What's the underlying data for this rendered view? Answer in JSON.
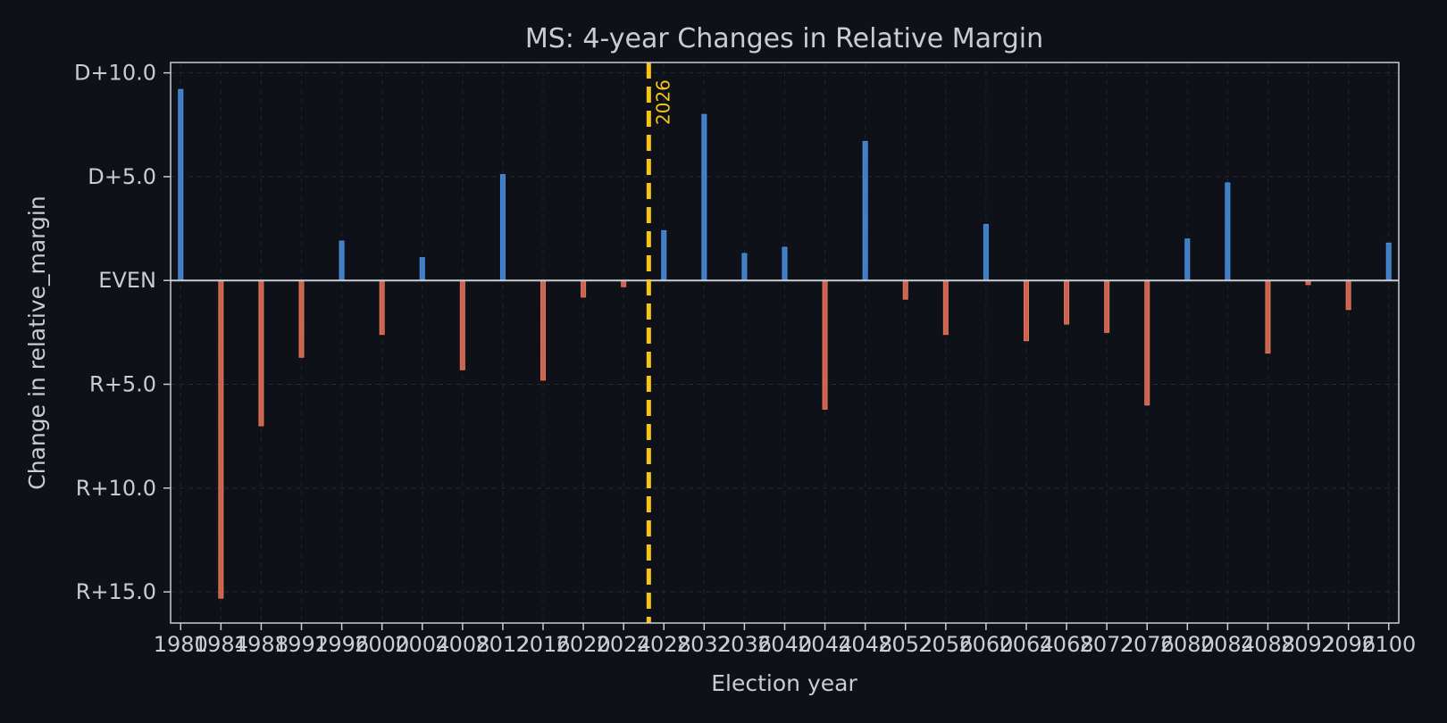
{
  "chart_data": {
    "type": "bar",
    "title": "MS: 4-year Changes in Relative Margin",
    "xlabel": "Election year",
    "ylabel": "Change in relative_margin",
    "x": [
      1980,
      1984,
      1988,
      1992,
      1996,
      2000,
      2004,
      2008,
      2012,
      2016,
      2020,
      2024,
      2028,
      2032,
      2036,
      2040,
      2044,
      2048,
      2052,
      2056,
      2060,
      2064,
      2068,
      2072,
      2076,
      2080,
      2084,
      2088,
      2092,
      2096,
      2100
    ],
    "x_tick_labels": [
      "1980",
      "1984",
      "1988",
      "1992",
      "1996",
      "2000",
      "2004",
      "2008",
      "2012",
      "2016",
      "2020",
      "2024",
      "2028",
      "2032",
      "2036",
      "2040",
      "2044",
      "2048",
      "2052",
      "2056",
      "2060",
      "2064",
      "2068",
      "2072",
      "2076",
      "2080",
      "2084",
      "2088",
      "2092",
      "2096",
      "2100"
    ],
    "values": [
      9.2,
      -15.3,
      -7.0,
      -3.7,
      1.9,
      -2.6,
      1.1,
      -4.3,
      5.1,
      -4.8,
      -0.8,
      -0.3,
      2.4,
      8.0,
      1.3,
      1.6,
      -6.2,
      6.7,
      -0.9,
      -2.6,
      2.7,
      -2.9,
      -2.1,
      -2.5,
      -6.0,
      2.0,
      4.7,
      -3.5,
      -0.2,
      -1.4,
      1.8
    ],
    "y_ticks": [
      10,
      5,
      0,
      -5,
      -10,
      -15
    ],
    "y_tick_labels": [
      "D+10.0",
      "D+5.0",
      "EVEN",
      "R+5.0",
      "R+10.0",
      "R+15.0"
    ],
    "ylim": [
      -16.5,
      10.5
    ],
    "xlim": [
      1979,
      2101
    ],
    "grid": true,
    "positive_color": "#4a90e2",
    "negative_color": "#e8735a",
    "marker": {
      "x": 2026.5,
      "label": "2026",
      "color": "#f5c518"
    }
  }
}
